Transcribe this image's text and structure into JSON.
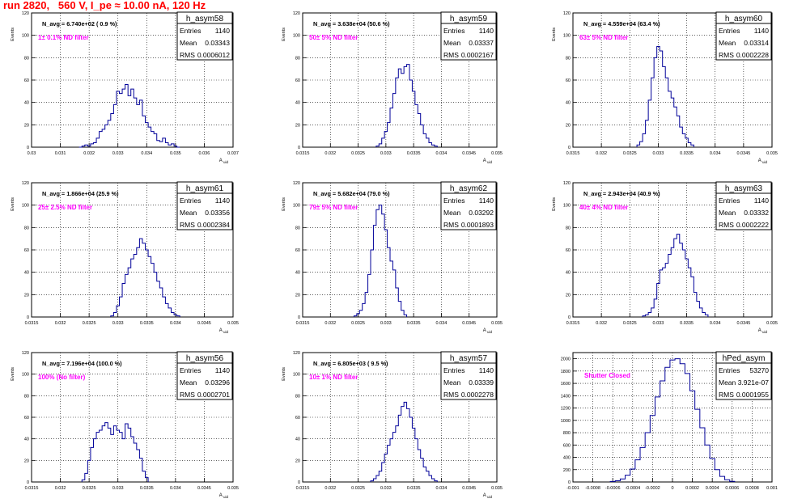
{
  "run_title": "run 2820,   560 V, I_pe ≈ 10.00 nA, 120 Hz",
  "colors": {
    "histogram": "#000099",
    "annotation": "#ff00ff",
    "title": "#ff0000"
  },
  "stats_labels": {
    "entries": "Entries",
    "mean": "Mean",
    "rms": "RMS"
  },
  "chart_data": [
    {
      "type": "bar",
      "name": "h_asym58",
      "ylabel": "Events",
      "xlabel": "A_uid",
      "ylim": [
        0,
        120
      ],
      "yticks": [
        "0",
        "20",
        "40",
        "60",
        "80",
        "100",
        "120"
      ],
      "xticks": [
        "0.03",
        "0.031",
        "0.032",
        "0.033",
        "0.034",
        "0.035",
        "0.036",
        "0.037"
      ],
      "xlim": [
        0.03,
        0.037
      ],
      "navg": "N_avg = 6.740e+02 ( 0.9 %)",
      "filter": "1± 0.1% ND filter",
      "stats": {
        "entries": "1140",
        "mean": "0.03343",
        "rms": "0.0006012"
      },
      "x": [
        0.0317,
        0.0318,
        0.0319,
        0.032,
        0.0321,
        0.0322,
        0.0323,
        0.0324,
        0.0325,
        0.0326,
        0.0327,
        0.0328,
        0.0329,
        0.033,
        0.0331,
        0.0332,
        0.0333,
        0.0334,
        0.0335,
        0.0336,
        0.0337,
        0.0338,
        0.0339,
        0.034,
        0.0341,
        0.0342,
        0.0343,
        0.0344,
        0.0345,
        0.0346,
        0.0347,
        0.0348,
        0.0349,
        0.035,
        0.0351
      ],
      "values": [
        0,
        1,
        2,
        1,
        3,
        4,
        8,
        14,
        16,
        20,
        24,
        30,
        38,
        50,
        48,
        52,
        56,
        46,
        52,
        44,
        38,
        42,
        28,
        22,
        18,
        14,
        12,
        6,
        5,
        8,
        4,
        2,
        3,
        1,
        0
      ]
    },
    {
      "type": "bar",
      "name": "h_asym59",
      "ylabel": "Events",
      "xlabel": "A_uid",
      "ylim": [
        0,
        120
      ],
      "yticks": [
        "0",
        "20",
        "40",
        "60",
        "80",
        "100",
        "120"
      ],
      "xticks": [
        "0.0315",
        "0.032",
        "0.0325",
        "0.033",
        "0.0335",
        "0.034",
        "0.0345",
        "0.035"
      ],
      "xlim": [
        0.0315,
        0.035
      ],
      "navg": "N_avg = 3.638e+04 (50.6 %)",
      "filter": "50± 5% ND filter",
      "stats": {
        "entries": "1140",
        "mean": "0.03337",
        "rms": "0.0002167"
      },
      "x": [
        0.03285,
        0.0329,
        0.03295,
        0.033,
        0.03305,
        0.0331,
        0.03315,
        0.0332,
        0.03325,
        0.0333,
        0.03335,
        0.0334,
        0.03345,
        0.0335,
        0.03355,
        0.0336,
        0.03365,
        0.0337,
        0.03375,
        0.0338,
        0.03385,
        0.0339
      ],
      "values": [
        1,
        3,
        8,
        14,
        22,
        35,
        48,
        62,
        70,
        66,
        72,
        74,
        60,
        50,
        38,
        30,
        20,
        12,
        8,
        4,
        2,
        1
      ]
    },
    {
      "type": "bar",
      "name": "h_asym60",
      "ylabel": "Events",
      "xlabel": "A_uid",
      "ylim": [
        0,
        120
      ],
      "yticks": [
        "0",
        "20",
        "40",
        "60",
        "80",
        "100",
        "120"
      ],
      "xticks": [
        "0.0315",
        "0.032",
        "0.0325",
        "0.033",
        "0.0335",
        "0.034",
        "0.0345",
        "0.035"
      ],
      "xlim": [
        0.0315,
        0.035
      ],
      "navg": "N_avg = 4.559e+04 (63.4 %)",
      "filter": "63± 5% ND filter",
      "stats": {
        "entries": "1140",
        "mean": "0.03314",
        "rms": "0.0002228"
      },
      "x": [
        0.03265,
        0.0327,
        0.03275,
        0.0328,
        0.03285,
        0.0329,
        0.03295,
        0.033,
        0.03305,
        0.0331,
        0.03315,
        0.0332,
        0.03325,
        0.0333,
        0.03335,
        0.0334,
        0.03345,
        0.0335,
        0.03355,
        0.0336
      ],
      "values": [
        2,
        5,
        12,
        24,
        42,
        62,
        80,
        90,
        86,
        72,
        62,
        50,
        44,
        36,
        28,
        18,
        12,
        8,
        4,
        2
      ]
    },
    {
      "type": "bar",
      "name": "h_asym61",
      "ylabel": "Events",
      "xlabel": "A_uid",
      "ylim": [
        0,
        120
      ],
      "yticks": [
        "0",
        "20",
        "40",
        "60",
        "80",
        "100",
        "120"
      ],
      "xticks": [
        "0.0315",
        "0.032",
        "0.0325",
        "0.033",
        "0.0335",
        "0.034",
        "0.0345",
        "0.035"
      ],
      "xlim": [
        0.0315,
        0.035
      ],
      "navg": "N_avg = 1.866e+04 (25.9 %)",
      "filter": "25± 2.5% ND filter",
      "stats": {
        "entries": "1140",
        "mean": "0.03356",
        "rms": "0.0002384"
      },
      "x": [
        0.0329,
        0.03295,
        0.033,
        0.03305,
        0.0331,
        0.03315,
        0.0332,
        0.03325,
        0.0333,
        0.03335,
        0.0334,
        0.03345,
        0.0335,
        0.03355,
        0.0336,
        0.03365,
        0.0337,
        0.03375,
        0.0338,
        0.03385,
        0.0339,
        0.03395,
        0.034,
        0.03405
      ],
      "values": [
        1,
        4,
        10,
        18,
        30,
        38,
        44,
        52,
        56,
        62,
        70,
        66,
        60,
        54,
        48,
        40,
        32,
        26,
        18,
        12,
        8,
        4,
        2,
        1
      ]
    },
    {
      "type": "bar",
      "name": "h_asym62",
      "ylabel": "Events",
      "xlabel": "A_uid",
      "ylim": [
        0,
        120
      ],
      "yticks": [
        "0",
        "20",
        "40",
        "60",
        "80",
        "100",
        "120"
      ],
      "xticks": [
        "0.0315",
        "0.032",
        "0.0325",
        "0.033",
        "0.0335",
        "0.034",
        "0.0345",
        "0.035"
      ],
      "xlim": [
        0.0315,
        0.035
      ],
      "navg": "N_avg = 5.682e+04 (79.0 %)",
      "filter": "79± 5% ND filter",
      "stats": {
        "entries": "1140",
        "mean": "0.03292",
        "rms": "0.0001893"
      },
      "x": [
        0.03245,
        0.0325,
        0.03255,
        0.0326,
        0.03265,
        0.0327,
        0.03275,
        0.0328,
        0.03285,
        0.0329,
        0.03295,
        0.033,
        0.03305,
        0.0331,
        0.03315,
        0.0332,
        0.03325,
        0.0333,
        0.03335
      ],
      "values": [
        1,
        3,
        6,
        12,
        22,
        38,
        60,
        82,
        96,
        100,
        92,
        78,
        62,
        50,
        42,
        26,
        14,
        6,
        2
      ]
    },
    {
      "type": "bar",
      "name": "h_asym63",
      "ylabel": "Events",
      "xlabel": "A_uid",
      "ylim": [
        0,
        120
      ],
      "yticks": [
        "0",
        "20",
        "40",
        "60",
        "80",
        "100",
        "120"
      ],
      "xticks": [
        "0.0315",
        "0.032",
        "0.0325",
        "0.033",
        "0.0335",
        "0.034",
        "0.0345",
        "0.035"
      ],
      "xlim": [
        0.0315,
        0.035
      ],
      "navg": "N_avg = 2.943e+04 (40.9 %)",
      "filter": "40± 4% ND filter",
      "stats": {
        "entries": "1140",
        "mean": "0.03332",
        "rms": "0.0002222"
      },
      "x": [
        0.03275,
        0.0328,
        0.03285,
        0.0329,
        0.03295,
        0.033,
        0.03305,
        0.0331,
        0.03315,
        0.0332,
        0.03325,
        0.0333,
        0.03335,
        0.0334,
        0.03345,
        0.0335,
        0.03355,
        0.0336,
        0.03365,
        0.0337,
        0.03375,
        0.0338,
        0.03385
      ],
      "values": [
        1,
        2,
        4,
        8,
        16,
        30,
        42,
        44,
        48,
        56,
        62,
        70,
        74,
        66,
        60,
        52,
        44,
        36,
        22,
        14,
        8,
        4,
        2
      ]
    },
    {
      "type": "bar",
      "name": "h_asym56",
      "ylabel": "Events",
      "xlabel": "A_uid",
      "ylim": [
        0,
        120
      ],
      "yticks": [
        "0",
        "20",
        "40",
        "60",
        "80",
        "100",
        "120"
      ],
      "xticks": [
        "0.0315",
        "0.032",
        "0.0325",
        "0.033",
        "0.0335",
        "0.034",
        "0.0345",
        "0.035"
      ],
      "xlim": [
        0.0315,
        0.035
      ],
      "navg": "N_avg = 7.196e+04 (100.0 %)",
      "filter": "100% (No filter)",
      "stats": {
        "entries": "1140",
        "mean": "0.03296",
        "rms": "0.0002701"
      },
      "x": [
        0.0324,
        0.03245,
        0.0325,
        0.03255,
        0.0326,
        0.03265,
        0.0327,
        0.03275,
        0.0328,
        0.03285,
        0.0329,
        0.03295,
        0.033,
        0.03305,
        0.0331,
        0.03315,
        0.0332,
        0.03325,
        0.0333,
        0.03335,
        0.0334,
        0.03345,
        0.0335
      ],
      "values": [
        2,
        8,
        20,
        32,
        40,
        46,
        48,
        52,
        55,
        50,
        44,
        52,
        48,
        46,
        40,
        54,
        50,
        42,
        36,
        30,
        22,
        10,
        4
      ]
    },
    {
      "type": "bar",
      "name": "h_asym57",
      "ylabel": "Events",
      "xlabel": "A_uid",
      "ylim": [
        0,
        120
      ],
      "yticks": [
        "0",
        "20",
        "40",
        "60",
        "80",
        "100",
        "120"
      ],
      "xticks": [
        "0.0315",
        "0.032",
        "0.0325",
        "0.033",
        "0.0335",
        "0.034",
        "0.0345",
        "0.035"
      ],
      "xlim": [
        0.0315,
        0.035
      ],
      "navg": "N_avg = 6.805e+03 ( 9.5 %)",
      "filter": "10± 1% ND filter",
      "stats": {
        "entries": "1140",
        "mean": "0.03339",
        "rms": "0.0002278"
      },
      "x": [
        0.03275,
        0.0328,
        0.03285,
        0.0329,
        0.03295,
        0.033,
        0.03305,
        0.0331,
        0.03315,
        0.0332,
        0.03325,
        0.0333,
        0.03335,
        0.0334,
        0.03345,
        0.0335,
        0.03355,
        0.0336,
        0.03365,
        0.0337,
        0.03375,
        0.0338,
        0.03385,
        0.0339
      ],
      "values": [
        1,
        3,
        6,
        10,
        18,
        26,
        34,
        40,
        46,
        52,
        62,
        70,
        74,
        68,
        60,
        50,
        40,
        30,
        22,
        14,
        10,
        6,
        3,
        1
      ]
    },
    {
      "type": "bar",
      "name": "hPed_asym",
      "ylabel": "",
      "xlabel": "",
      "ylim": [
        0,
        2100
      ],
      "yticks": [
        "0",
        "200",
        "400",
        "600",
        "800",
        "1000",
        "1200",
        "1400",
        "1600",
        "1800",
        "2000"
      ],
      "xticks": [
        "-0.001",
        "-0.0008",
        "-0.0006",
        "-0.0004",
        "-0.0002",
        "0",
        "0.0002",
        "0.0004",
        "0.0006",
        "0.0008",
        "0.001"
      ],
      "xlim": [
        -0.001,
        0.001
      ],
      "navg": "",
      "filter": "Shutter Closed",
      "stats": {
        "entries": "53270",
        "mean": "3.921e-07",
        "rms": "0.0001955"
      },
      "x": [
        -0.0006,
        -0.00055,
        -0.0005,
        -0.00045,
        -0.0004,
        -0.00035,
        -0.0003,
        -0.00025,
        -0.0002,
        -0.00015,
        -0.0001,
        -5e-05,
        0,
        5e-05,
        0.0001,
        0.00015,
        0.0002,
        0.00025,
        0.0003,
        0.00035,
        0.0004,
        0.00045,
        0.0005,
        0.00055,
        0.0006
      ],
      "values": [
        8,
        20,
        50,
        110,
        210,
        360,
        560,
        800,
        1080,
        1380,
        1640,
        1860,
        1980,
        2000,
        1920,
        1760,
        1480,
        1180,
        880,
        600,
        380,
        200,
        90,
        36,
        10
      ]
    }
  ]
}
